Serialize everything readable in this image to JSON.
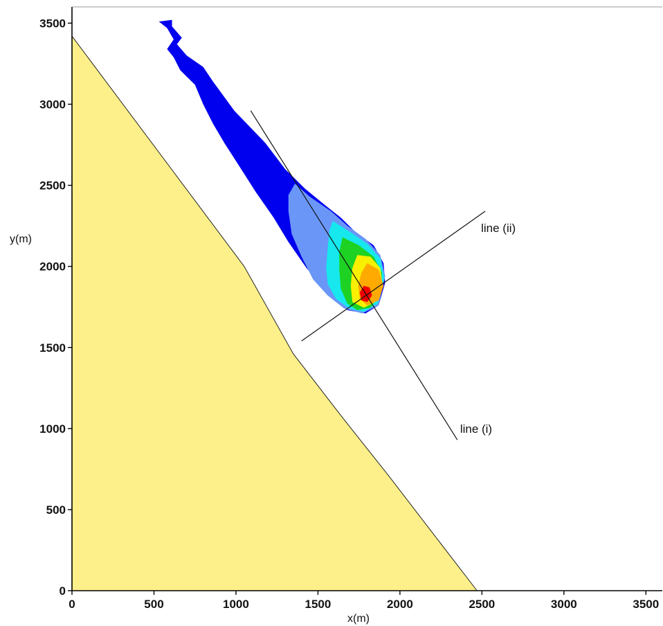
{
  "chart_data": {
    "type": "contour",
    "title": "",
    "xlabel": "x(m)",
    "ylabel": "y(m)",
    "xlim": [
      0,
      3600
    ],
    "ylim": [
      0,
      3600
    ],
    "x_ticks": [
      "0",
      "500",
      "1000",
      "1500",
      "2000",
      "2500",
      "3000",
      "3500"
    ],
    "y_ticks": [
      "0",
      "500",
      "1000",
      "1500",
      "2000",
      "2500",
      "3000",
      "3500"
    ],
    "grid": false,
    "colors": {
      "terrain": "#fdf08a",
      "level_1": "#0000ee",
      "level_2": "#6a96f8",
      "level_3": "#16e8ee",
      "level_4": "#1ed224",
      "level_5": "#f8f000",
      "level_6": "#ffaa00",
      "level_7": "#ee0000"
    },
    "terrain_boundary": [
      [
        0,
        3420
      ],
      [
        1050,
        2000
      ],
      [
        1350,
        1460
      ],
      [
        1640,
        1080
      ],
      [
        1930,
        710
      ],
      [
        2470,
        0
      ]
    ],
    "contours": [
      {
        "level": 1,
        "points": [
          [
            530,
            3510
          ],
          [
            610,
            3520
          ],
          [
            610,
            3480
          ],
          [
            670,
            3410
          ],
          [
            640,
            3370
          ],
          [
            700,
            3300
          ],
          [
            800,
            3230
          ],
          [
            860,
            3140
          ],
          [
            990,
            2960
          ],
          [
            1180,
            2760
          ],
          [
            1300,
            2600
          ],
          [
            1420,
            2480
          ],
          [
            1540,
            2380
          ],
          [
            1640,
            2300
          ],
          [
            1730,
            2210
          ],
          [
            1840,
            2130
          ],
          [
            1900,
            2020
          ],
          [
            1910,
            1900
          ],
          [
            1870,
            1760
          ],
          [
            1790,
            1710
          ],
          [
            1680,
            1730
          ],
          [
            1580,
            1810
          ],
          [
            1430,
            1990
          ],
          [
            1320,
            2150
          ],
          [
            1230,
            2300
          ],
          [
            1120,
            2460
          ],
          [
            1000,
            2650
          ],
          [
            930,
            2760
          ],
          [
            860,
            2880
          ],
          [
            800,
            3000
          ],
          [
            750,
            3120
          ],
          [
            660,
            3210
          ],
          [
            620,
            3290
          ],
          [
            580,
            3340
          ],
          [
            620,
            3400
          ],
          [
            580,
            3470
          ]
        ]
      },
      {
        "level": 2,
        "points": [
          [
            1360,
            2510
          ],
          [
            1450,
            2430
          ],
          [
            1580,
            2340
          ],
          [
            1680,
            2250
          ],
          [
            1790,
            2170
          ],
          [
            1880,
            2070
          ],
          [
            1910,
            1940
          ],
          [
            1870,
            1760
          ],
          [
            1770,
            1710
          ],
          [
            1660,
            1740
          ],
          [
            1560,
            1820
          ],
          [
            1470,
            1920
          ],
          [
            1400,
            2060
          ],
          [
            1340,
            2200
          ],
          [
            1320,
            2340
          ],
          [
            1320,
            2440
          ]
        ]
      },
      {
        "level": 3,
        "points": [
          [
            1590,
            2280
          ],
          [
            1700,
            2210
          ],
          [
            1800,
            2140
          ],
          [
            1880,
            2050
          ],
          [
            1905,
            1930
          ],
          [
            1865,
            1770
          ],
          [
            1780,
            1720
          ],
          [
            1690,
            1740
          ],
          [
            1610,
            1800
          ],
          [
            1560,
            1890
          ],
          [
            1550,
            1990
          ],
          [
            1560,
            2120
          ],
          [
            1570,
            2220
          ]
        ]
      },
      {
        "level": 4,
        "points": [
          [
            1650,
            2180
          ],
          [
            1750,
            2130
          ],
          [
            1840,
            2060
          ],
          [
            1890,
            1960
          ],
          [
            1880,
            1830
          ],
          [
            1820,
            1745
          ],
          [
            1740,
            1730
          ],
          [
            1680,
            1770
          ],
          [
            1640,
            1860
          ],
          [
            1630,
            1980
          ],
          [
            1630,
            2090
          ]
        ]
      },
      {
        "level": 5,
        "points": [
          [
            1740,
            2070
          ],
          [
            1820,
            2060
          ],
          [
            1880,
            1990
          ],
          [
            1895,
            1880
          ],
          [
            1850,
            1780
          ],
          [
            1780,
            1745
          ],
          [
            1710,
            1780
          ],
          [
            1700,
            1880
          ],
          [
            1710,
            1990
          ]
        ]
      },
      {
        "level": 6,
        "points": [
          [
            1800,
            2020
          ],
          [
            1870,
            1980
          ],
          [
            1900,
            1880
          ],
          [
            1870,
            1790
          ],
          [
            1800,
            1760
          ],
          [
            1755,
            1800
          ],
          [
            1745,
            1880
          ],
          [
            1765,
            1960
          ]
        ]
      },
      {
        "level": 7,
        "points": [
          [
            1780,
            1880
          ],
          [
            1815,
            1870
          ],
          [
            1830,
            1820
          ],
          [
            1800,
            1780
          ],
          [
            1765,
            1790
          ],
          [
            1755,
            1840
          ]
        ]
      }
    ],
    "lines": [
      {
        "label": "line (i)",
        "from": [
          1090,
          2960
        ],
        "to": [
          2350,
          930
        ]
      },
      {
        "label": "line (ii)",
        "from": [
          1400,
          1540
        ],
        "to": [
          2520,
          2340
        ]
      }
    ]
  }
}
